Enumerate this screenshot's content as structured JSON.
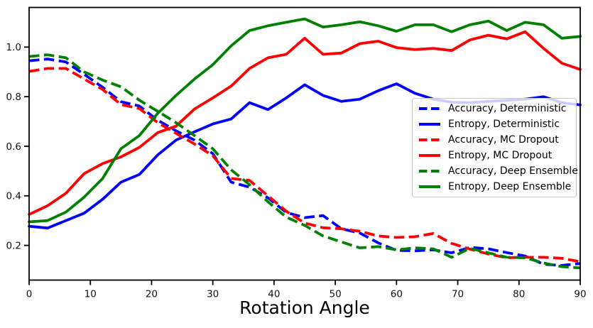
{
  "chart_data": {
    "type": "line",
    "title": "",
    "xlabel": "Rotation Angle",
    "ylabel": "",
    "xlim": [
      0,
      90
    ],
    "ylim": [
      0.06,
      1.16
    ],
    "xticks": [
      0,
      10,
      20,
      30,
      40,
      50,
      60,
      70,
      80,
      90
    ],
    "yticks": [
      0.2,
      0.4,
      0.6,
      0.8,
      1.0
    ],
    "grid": false,
    "legend_position": "center-right",
    "line_width": 4,
    "x_step_degrees": 3,
    "x": [
      0,
      3,
      6,
      9,
      12,
      15,
      18,
      21,
      24,
      27,
      30,
      33,
      36,
      39,
      42,
      45,
      48,
      51,
      54,
      57,
      60,
      63,
      66,
      69,
      72,
      75,
      78,
      81,
      84,
      87,
      90
    ],
    "series": [
      {
        "name": "Accuracy, Deterministic",
        "color": "#0000ff",
        "style": "dashed",
        "values": [
          0.945,
          0.952,
          0.94,
          0.89,
          0.838,
          0.78,
          0.762,
          0.705,
          0.662,
          0.625,
          0.57,
          0.455,
          0.435,
          0.392,
          0.333,
          0.312,
          0.32,
          0.267,
          0.25,
          0.21,
          0.18,
          0.178,
          0.182,
          0.17,
          0.192,
          0.186,
          0.171,
          0.157,
          0.124,
          0.119,
          0.127
        ]
      },
      {
        "name": "Entropy, Deterministic",
        "color": "#0000ff",
        "style": "solid",
        "values": [
          0.277,
          0.27,
          0.3,
          0.33,
          0.386,
          0.455,
          0.486,
          0.565,
          0.625,
          0.658,
          0.69,
          0.71,
          0.776,
          0.748,
          0.795,
          0.848,
          0.805,
          0.781,
          0.79,
          0.824,
          0.852,
          0.814,
          0.79,
          0.778,
          0.776,
          0.781,
          0.785,
          0.79,
          0.8,
          0.776,
          0.767
        ]
      },
      {
        "name": "Accuracy, MC Dropout",
        "color": "#ff0000",
        "style": "dashed",
        "values": [
          0.902,
          0.914,
          0.914,
          0.871,
          0.829,
          0.768,
          0.752,
          0.695,
          0.652,
          0.609,
          0.562,
          0.47,
          0.462,
          0.4,
          0.338,
          0.29,
          0.271,
          0.267,
          0.257,
          0.238,
          0.232,
          0.235,
          0.248,
          0.208,
          0.185,
          0.165,
          0.15,
          0.152,
          0.152,
          0.148,
          0.134
        ]
      },
      {
        "name": "Entropy, MC Dropout",
        "color": "#ff0000",
        "style": "solid",
        "values": [
          0.325,
          0.36,
          0.41,
          0.49,
          0.53,
          0.557,
          0.595,
          0.655,
          0.681,
          0.75,
          0.795,
          0.843,
          0.914,
          0.957,
          0.971,
          1.036,
          0.971,
          0.976,
          1.014,
          1.024,
          0.998,
          0.99,
          0.995,
          0.986,
          1.029,
          1.048,
          1.033,
          1.062,
          0.995,
          0.935,
          0.91
        ]
      },
      {
        "name": "Accuracy, Deep Ensemble",
        "color": "#008000",
        "style": "dashed",
        "values": [
          0.962,
          0.969,
          0.957,
          0.9,
          0.867,
          0.84,
          0.786,
          0.741,
          0.695,
          0.643,
          0.59,
          0.505,
          0.445,
          0.376,
          0.314,
          0.281,
          0.238,
          0.214,
          0.19,
          0.195,
          0.182,
          0.19,
          0.186,
          0.152,
          0.188,
          0.17,
          0.152,
          0.15,
          0.129,
          0.114,
          0.109
        ]
      },
      {
        "name": "Entropy, Deep Ensemble",
        "color": "#008000",
        "style": "solid",
        "values": [
          0.295,
          0.3,
          0.334,
          0.395,
          0.47,
          0.59,
          0.643,
          0.733,
          0.805,
          0.871,
          0.929,
          1.005,
          1.067,
          1.086,
          1.1,
          1.114,
          1.081,
          1.09,
          1.102,
          1.086,
          1.064,
          1.09,
          1.09,
          1.062,
          1.09,
          1.105,
          1.067,
          1.1,
          1.09,
          1.036,
          1.043
        ]
      }
    ]
  }
}
